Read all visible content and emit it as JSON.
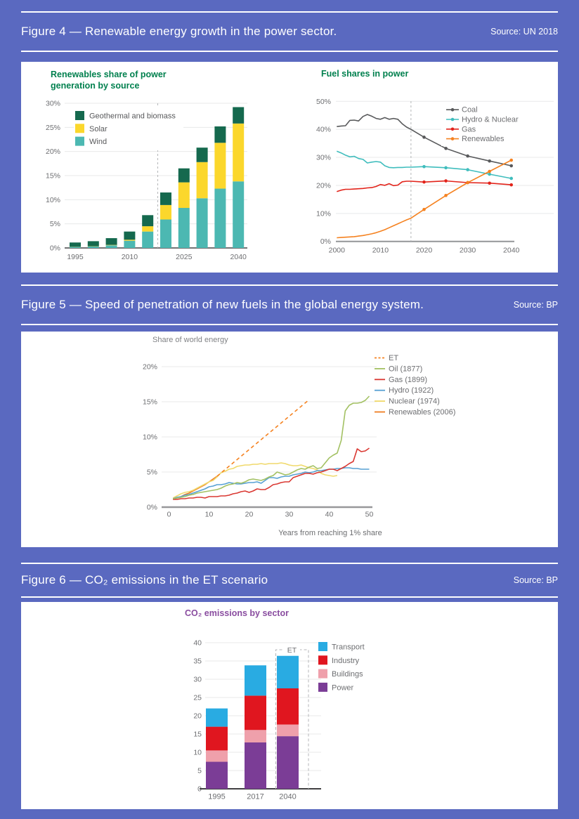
{
  "page": {
    "background": "#5a69c0",
    "panel_background": "#ffffff",
    "heading_color": "#ffffff"
  },
  "figures": [
    {
      "title": "Figure 4 — Renewable energy growth in the power sector.",
      "source": "Source: UN 2018"
    },
    {
      "title": "Figure 5 — Speed of penetration of new fuels in the global energy system.",
      "source": "Source: BP"
    },
    {
      "title": "Figure 6 — CO₂ emissions in the ET scenario",
      "source": "Source: BP"
    }
  ],
  "chart_data": [
    {
      "id": "renewables-share",
      "type": "bar",
      "stacked": true,
      "title_lines": [
        "Renewables share of power",
        "generation by source"
      ],
      "title_color": "#00804e",
      "categories": [
        "1995",
        "2000",
        "2005",
        "2010",
        "2015",
        "2020",
        "2025",
        "2030",
        "2035",
        "2040"
      ],
      "series": [
        {
          "name": "Wind",
          "color": "#4cb8b2",
          "values": [
            0.2,
            0.3,
            0.55,
            1.5,
            3.4,
            5.9,
            8.3,
            10.3,
            12.3,
            13.8
          ]
        },
        {
          "name": "Solar",
          "color": "#fbd72c",
          "values": [
            0.03,
            0.05,
            0.08,
            0.2,
            1.1,
            3.0,
            5.3,
            7.5,
            9.5,
            12.0
          ]
        },
        {
          "name": "Geothermal and biomass",
          "color": "#15694e",
          "values": [
            0.9,
            1.05,
            1.4,
            1.7,
            2.3,
            2.6,
            2.9,
            3.0,
            3.4,
            3.4
          ]
        }
      ],
      "legend": [
        "Geothermal and biomass",
        "Solar",
        "Wind"
      ],
      "ylim": [
        0,
        30
      ],
      "yticks": [
        "0%",
        "5%",
        "10%",
        "15%",
        "20%",
        "25%",
        "30%"
      ],
      "xticks": [
        {
          "label": "1995",
          "index": 0
        },
        {
          "label": "2010",
          "index": 3
        },
        {
          "label": "2025",
          "index": 6
        },
        {
          "label": "2040",
          "index": 9
        }
      ],
      "dashed_divider_year": 2017,
      "grid": true
    },
    {
      "id": "fuel-shares",
      "type": "line",
      "title": "Fuel shares in power",
      "title_color": "#00804e",
      "xlim": [
        2000,
        2040
      ],
      "ylim": [
        0,
        50
      ],
      "yticks": [
        "0%",
        "10%",
        "20%",
        "30%",
        "40%",
        "50%"
      ],
      "xticks": [
        "2000",
        "2010",
        "2020",
        "2030",
        "2040"
      ],
      "dashed_vline_x": 2017,
      "marker_from_x": 2020,
      "legend_position": "top-right-inside",
      "series": [
        {
          "name": "Coal",
          "color": "#58595b",
          "points": [
            [
              2000,
              41.0
            ],
            [
              2001,
              41.2
            ],
            [
              2002,
              41.3
            ],
            [
              2003,
              43.2
            ],
            [
              2004,
              43.3
            ],
            [
              2005,
              43.0
            ],
            [
              2006,
              44.6
            ],
            [
              2007,
              45.3
            ],
            [
              2008,
              44.7
            ],
            [
              2009,
              43.9
            ],
            [
              2010,
              43.6
            ],
            [
              2011,
              44.2
            ],
            [
              2012,
              43.6
            ],
            [
              2013,
              43.9
            ],
            [
              2014,
              43.6
            ],
            [
              2015,
              42.0
            ],
            [
              2016,
              40.8
            ],
            [
              2017,
              40.0
            ],
            [
              2020,
              37.2
            ],
            [
              2025,
              33.2
            ],
            [
              2030,
              30.5
            ],
            [
              2035,
              28.7
            ],
            [
              2040,
              27.0
            ]
          ]
        },
        {
          "name": "Hydro & Nuclear",
          "color": "#3fbdbd",
          "points": [
            [
              2000,
              32.2
            ],
            [
              2001,
              31.6
            ],
            [
              2002,
              30.8
            ],
            [
              2003,
              30.2
            ],
            [
              2004,
              30.4
            ],
            [
              2005,
              29.6
            ],
            [
              2006,
              29.3
            ],
            [
              2007,
              28.0
            ],
            [
              2008,
              28.3
            ],
            [
              2009,
              28.5
            ],
            [
              2010,
              28.3
            ],
            [
              2011,
              27.0
            ],
            [
              2012,
              26.4
            ],
            [
              2013,
              26.3
            ],
            [
              2014,
              26.4
            ],
            [
              2015,
              26.4
            ],
            [
              2016,
              26.5
            ],
            [
              2017,
              26.5
            ],
            [
              2020,
              26.7
            ],
            [
              2025,
              26.3
            ],
            [
              2030,
              25.6
            ],
            [
              2035,
              24.0
            ],
            [
              2040,
              22.5
            ]
          ]
        },
        {
          "name": "Gas",
          "color": "#e2231a",
          "points": [
            [
              2000,
              17.8
            ],
            [
              2001,
              18.3
            ],
            [
              2002,
              18.6
            ],
            [
              2003,
              18.6
            ],
            [
              2004,
              18.7
            ],
            [
              2005,
              18.8
            ],
            [
              2006,
              18.9
            ],
            [
              2007,
              19.1
            ],
            [
              2008,
              19.2
            ],
            [
              2009,
              19.6
            ],
            [
              2010,
              20.3
            ],
            [
              2011,
              20.0
            ],
            [
              2012,
              20.6
            ],
            [
              2013,
              19.9
            ],
            [
              2014,
              20.1
            ],
            [
              2015,
              21.3
            ],
            [
              2016,
              21.5
            ],
            [
              2017,
              21.5
            ],
            [
              2020,
              21.2
            ],
            [
              2025,
              21.6
            ],
            [
              2030,
              21.0
            ],
            [
              2035,
              20.8
            ],
            [
              2040,
              20.2
            ]
          ]
        },
        {
          "name": "Renewables",
          "color": "#f58220",
          "points": [
            [
              2000,
              1.3
            ],
            [
              2001,
              1.4
            ],
            [
              2002,
              1.5
            ],
            [
              2003,
              1.6
            ],
            [
              2004,
              1.7
            ],
            [
              2005,
              1.9
            ],
            [
              2006,
              2.1
            ],
            [
              2007,
              2.4
            ],
            [
              2008,
              2.7
            ],
            [
              2009,
              3.1
            ],
            [
              2010,
              3.6
            ],
            [
              2011,
              4.2
            ],
            [
              2012,
              4.9
            ],
            [
              2013,
              5.6
            ],
            [
              2014,
              6.3
            ],
            [
              2015,
              7.0
            ],
            [
              2016,
              7.7
            ],
            [
              2017,
              8.3
            ],
            [
              2020,
              11.4
            ],
            [
              2025,
              16.4
            ],
            [
              2030,
              21.0
            ],
            [
              2035,
              25.0
            ],
            [
              2040,
              29.0
            ]
          ]
        }
      ]
    },
    {
      "id": "fuel-penetration",
      "type": "line",
      "title": "Share of world energy",
      "title_color": "#808285",
      "xlabel": "Years from reaching 1% share",
      "xlim": [
        0,
        50
      ],
      "ylim": [
        0,
        20
      ],
      "yticks": [
        "0%",
        "5%",
        "10%",
        "15%",
        "20%"
      ],
      "xticks": [
        "0",
        "10",
        "20",
        "30",
        "40",
        "50"
      ],
      "legend_position": "right-outside",
      "series": [
        {
          "name": "ET",
          "color": "#f58220",
          "dashed": true,
          "points": [
            [
              12,
              4.4
            ],
            [
              35,
              15.3
            ]
          ]
        },
        {
          "name": "Oil (1877)",
          "color": "#a3c163",
          "x_start": 1,
          "values": [
            1.2,
            1.3,
            1.4,
            1.5,
            1.7,
            1.8,
            2.0,
            2.1,
            2.2,
            2.3,
            2.4,
            2.5,
            2.7,
            3.0,
            3.2,
            3.3,
            3.5,
            3.4,
            3.6,
            3.9,
            4.0,
            3.9,
            3.8,
            4.0,
            4.3,
            4.5,
            5.0,
            4.8,
            4.6,
            4.7,
            5.0,
            5.3,
            5.5,
            5.4,
            5.7,
            5.9,
            5.5,
            5.6,
            6.3,
            7.0,
            7.4,
            7.7,
            9.5,
            13.7,
            14.5,
            14.8,
            14.8,
            14.9,
            15.2,
            15.8
          ]
        },
        {
          "name": "Gas (1899)",
          "color": "#da3832",
          "x_start": 1,
          "values": [
            1.1,
            1.1,
            1.2,
            1.2,
            1.3,
            1.3,
            1.4,
            1.4,
            1.3,
            1.5,
            1.5,
            1.5,
            1.6,
            1.6,
            1.7,
            1.9,
            2.0,
            2.2,
            2.3,
            2.1,
            2.3,
            2.6,
            2.5,
            2.5,
            2.8,
            3.2,
            3.3,
            3.5,
            3.6,
            3.6,
            4.2,
            4.4,
            4.6,
            4.8,
            4.8,
            4.7,
            4.9,
            5.0,
            5.2,
            5.4,
            5.4,
            5.2,
            5.5,
            5.8,
            6.2,
            6.5,
            8.3,
            7.9,
            8.0,
            8.4
          ]
        },
        {
          "name": "Hydro (1922)",
          "color": "#56a0d3",
          "x_start": 1,
          "values": [
            1.2,
            1.4,
            1.5,
            1.7,
            1.8,
            2.0,
            2.2,
            2.4,
            2.6,
            2.9,
            3.0,
            3.2,
            3.2,
            3.3,
            3.5,
            3.4,
            3.3,
            3.3,
            3.4,
            3.5,
            3.5,
            3.6,
            3.4,
            3.8,
            4.2,
            4.2,
            4.1,
            4.3,
            4.4,
            4.4,
            4.6,
            4.7,
            4.8,
            5.0,
            4.9,
            5.0,
            5.2,
            5.2,
            5.3,
            5.4,
            5.4,
            5.5,
            5.5,
            5.6,
            5.6,
            5.5,
            5.5,
            5.4,
            5.4,
            5.4
          ]
        },
        {
          "name": "Nuclear (1974)",
          "color": "#f0d96b",
          "x_start": 1,
          "values": [
            1.3,
            1.6,
            1.9,
            2.1,
            2.2,
            2.4,
            2.7,
            3.0,
            3.3,
            3.6,
            3.8,
            4.3,
            4.9,
            5.1,
            5.4,
            5.5,
            5.8,
            5.9,
            6.0,
            6.0,
            6.1,
            6.1,
            6.2,
            6.1,
            6.2,
            6.2,
            6.2,
            6.3,
            6.2,
            6.0,
            5.9,
            5.9,
            6.0,
            5.8,
            5.6,
            5.5,
            5.3,
            4.8,
            4.6,
            4.5,
            4.4,
            4.5
          ]
        },
        {
          "name": "Renewables (2006)",
          "color": "#ef7d22",
          "x_start": 1,
          "values": [
            1.1,
            1.3,
            1.5,
            1.8,
            2.0,
            2.3,
            2.6,
            2.9,
            3.2,
            3.6,
            4.0,
            4.4
          ]
        }
      ]
    },
    {
      "id": "co2-emissions",
      "type": "bar",
      "stacked": true,
      "title_lines": [
        "CO₂ emissions by sector"
      ],
      "title_color": "#8a4da0",
      "categories": [
        "1995",
        "2017",
        "2040"
      ],
      "series": [
        {
          "name": "Power",
          "color": "#7b3d96",
          "values": [
            7.4,
            12.7,
            14.4
          ]
        },
        {
          "name": "Buildings",
          "color": "#efa0ab",
          "values": [
            3.1,
            3.4,
            3.2
          ]
        },
        {
          "name": "Industry",
          "color": "#e0161f",
          "values": [
            6.5,
            9.4,
            9.9
          ]
        },
        {
          "name": "Transport",
          "color": "#29abe2",
          "values": [
            5.0,
            8.3,
            8.9
          ]
        }
      ],
      "legend": [
        "Transport",
        "Industry",
        "Buildings",
        "Power"
      ],
      "ylim": [
        0,
        40
      ],
      "yticks": [
        "0",
        "5",
        "10",
        "15",
        "20",
        "25",
        "30",
        "35",
        "40"
      ],
      "annotation": {
        "label": "ET",
        "category": "2040"
      }
    }
  ]
}
